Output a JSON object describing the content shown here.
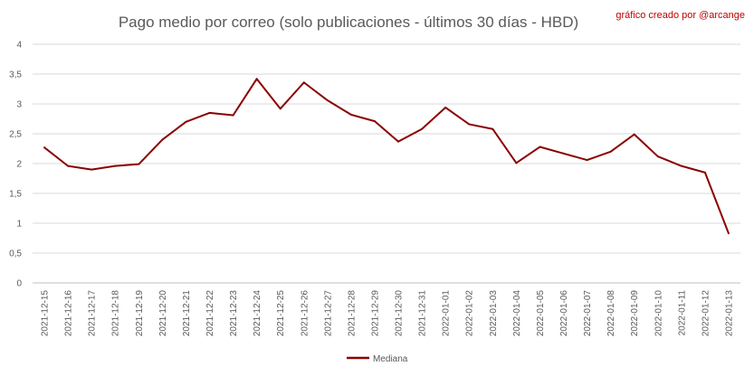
{
  "chart_data": {
    "type": "line",
    "title": "Pago medio por correo (solo publicaciones - últimos 30 días - HBD)",
    "credit": "gráfico creado por @arcange",
    "xlabel": "",
    "ylabel": "",
    "ylim": [
      0,
      4
    ],
    "yticks": [
      "0",
      "0,5",
      "1",
      "1,5",
      "2",
      "2,5",
      "3",
      "3,5",
      "4"
    ],
    "grid": true,
    "legend": "bottom",
    "categories": [
      "2021-12-15",
      "2021-12-16",
      "2021-12-17",
      "2021-12-18",
      "2021-12-19",
      "2021-12-20",
      "2021-12-21",
      "2021-12-22",
      "2021-12-23",
      "2021-12-24",
      "2021-12-25",
      "2021-12-26",
      "2021-12-27",
      "2021-12-28",
      "2021-12-29",
      "2021-12-30",
      "2021-12-31",
      "2022-01-01",
      "2022-01-02",
      "2022-01-03",
      "2022-01-04",
      "2022-01-05",
      "2022-01-06",
      "2022-01-07",
      "2022-01-08",
      "2022-01-09",
      "2022-01-10",
      "2022-01-11",
      "2022-01-12",
      "2022-01-13"
    ],
    "series": [
      {
        "name": "Mediana",
        "color": "#8b0000",
        "values": [
          2.27,
          1.96,
          1.9,
          1.96,
          1.99,
          2.4,
          2.7,
          2.85,
          2.81,
          3.42,
          2.92,
          3.36,
          3.06,
          2.82,
          2.71,
          2.37,
          2.58,
          2.94,
          2.66,
          2.58,
          2.01,
          2.28,
          2.17,
          2.06,
          2.2,
          2.49,
          2.12,
          1.96,
          1.85,
          0.83
        ]
      }
    ],
    "colors": {
      "credit": "#c00000",
      "line": "#8b0000"
    }
  }
}
